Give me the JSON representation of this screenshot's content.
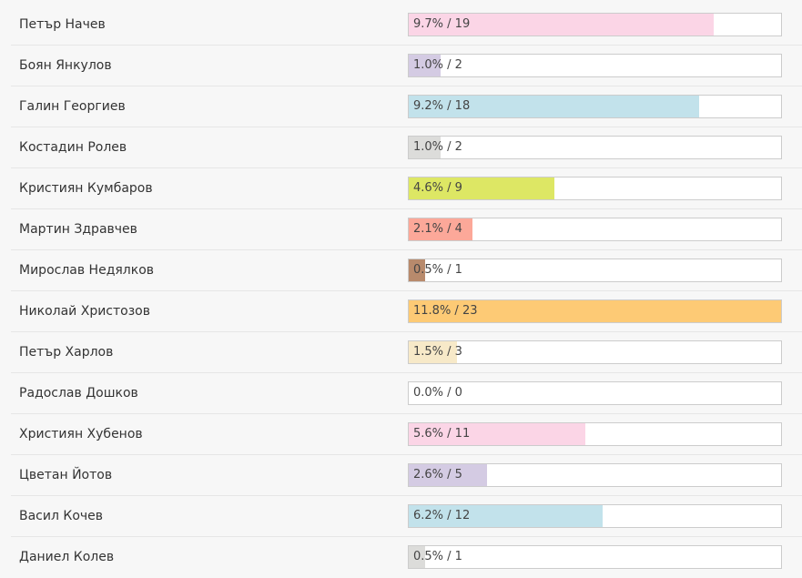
{
  "poll": {
    "rows": [
      {
        "name": "Петър Начев",
        "result": "9.7% / 19",
        "fill_percent": 82,
        "color": "#fbd5e6"
      },
      {
        "name": "Боян Янкулов",
        "result": "1.0% / 2",
        "fill_percent": 8.5,
        "color": "#d4cbe3"
      },
      {
        "name": "Галин Георгиев",
        "result": "9.2% / 18",
        "fill_percent": 78,
        "color": "#c2e2eb"
      },
      {
        "name": "Костадин Ролев",
        "result": "1.0% / 2",
        "fill_percent": 8.5,
        "color": "#dcdcda"
      },
      {
        "name": "Кристиян Кумбаров",
        "result": "4.6% / 9",
        "fill_percent": 39,
        "color": "#dde764"
      },
      {
        "name": "Мартин Здравчев",
        "result": "2.1% / 4",
        "fill_percent": 17,
        "color": "#fca899"
      },
      {
        "name": "Мирослав Недялков",
        "result": "0.5% / 1",
        "fill_percent": 4.3,
        "color": "#b88a6c"
      },
      {
        "name": "Николай Христозов",
        "result": "11.8% / 23",
        "fill_percent": 100,
        "color": "#fdca75"
      },
      {
        "name": "Петър Харлов",
        "result": "1.5% / 3",
        "fill_percent": 13,
        "color": "#f7e9c8"
      },
      {
        "name": "Радослав Дошков",
        "result": "0.0% / 0",
        "fill_percent": 0,
        "color": "#ffffff"
      },
      {
        "name": "Християн Хубенов",
        "result": "5.6% / 11",
        "fill_percent": 47.5,
        "color": "#fbd5e6"
      },
      {
        "name": "Цветан Йотов",
        "result": "2.6% / 5",
        "fill_percent": 21,
        "color": "#d4cbe3"
      },
      {
        "name": "Васил Кочев",
        "result": "6.2% / 12",
        "fill_percent": 52,
        "color": "#c2e2eb"
      },
      {
        "name": "Даниел Колев",
        "result": "0.5% / 1",
        "fill_percent": 4.3,
        "color": "#dcdcda"
      }
    ]
  }
}
